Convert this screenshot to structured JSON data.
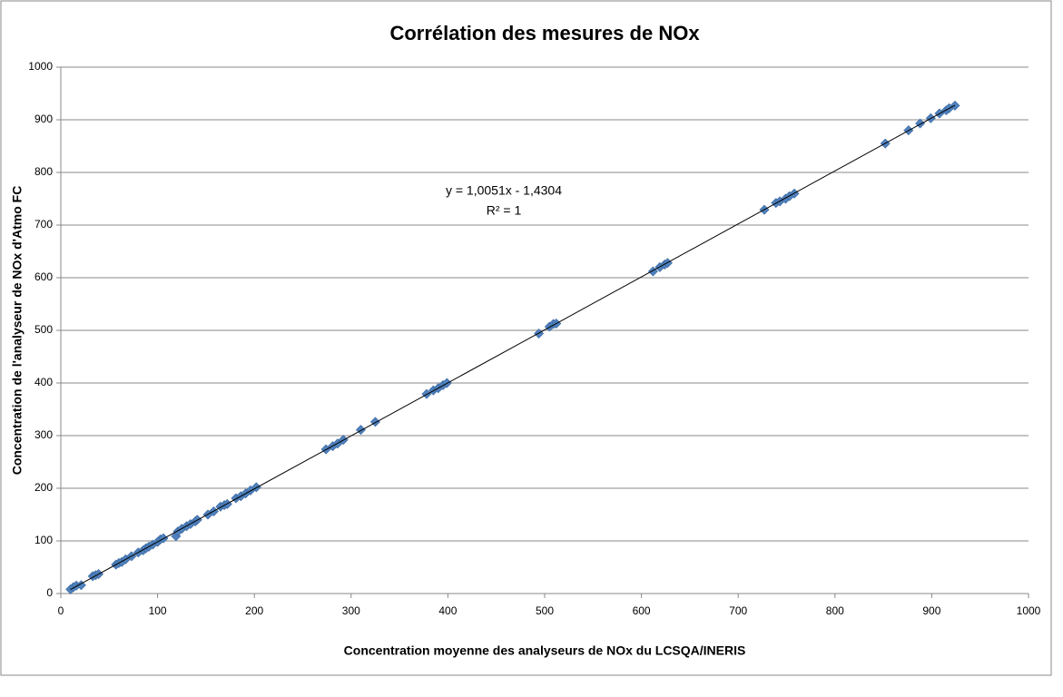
{
  "chart_data": {
    "type": "scatter",
    "title": "Corrélation des mesures de NOx",
    "x_label": "Concentration moyenne des analyseurs de NOx du LCSQA/INERIS",
    "y_label": "Concentration de l'analyseur de NOx d'Atmo FC",
    "annotations": [
      "y = 1,0051x - 1,4304",
      "R² = 1"
    ],
    "color": "#4f81bd",
    "grid": true,
    "trendline": true,
    "xlim": [
      0,
      1000
    ],
    "xticks": [
      0,
      100,
      200,
      300,
      400,
      500,
      600,
      700,
      800,
      900,
      1000
    ],
    "ylim": [
      0,
      1000
    ],
    "yticks": [
      0,
      100,
      200,
      300,
      400,
      500,
      600,
      700,
      800,
      900,
      1000
    ],
    "x": [
      10,
      13,
      16,
      21,
      33,
      36,
      39,
      57,
      60,
      63,
      67,
      73,
      80,
      85,
      88,
      91,
      95,
      100,
      103,
      106,
      119,
      121,
      125,
      130,
      134,
      139,
      141,
      152,
      158,
      165,
      169,
      172,
      181,
      186,
      191,
      196,
      202,
      274,
      281,
      286,
      292,
      310,
      325,
      378,
      385,
      390,
      395,
      399,
      494,
      505,
      509,
      512,
      612,
      619,
      624,
      627,
      727,
      739,
      743,
      749,
      753,
      758,
      852,
      876,
      888,
      899,
      908,
      915,
      918,
      924
    ],
    "y": [
      8,
      12,
      15,
      16,
      33,
      35,
      37,
      55,
      58,
      60,
      65,
      71,
      78,
      82,
      86,
      89,
      93,
      98,
      103,
      105,
      109,
      118,
      123,
      128,
      132,
      137,
      140,
      150,
      156,
      165,
      168,
      170,
      181,
      185,
      190,
      196,
      202,
      274,
      280,
      285,
      292,
      311,
      326,
      379,
      386,
      390,
      396,
      400,
      494,
      507,
      512,
      513,
      612,
      620,
      625,
      628,
      729,
      742,
      745,
      750,
      755,
      760,
      855,
      880,
      893,
      903,
      912,
      918,
      922,
      927
    ]
  }
}
